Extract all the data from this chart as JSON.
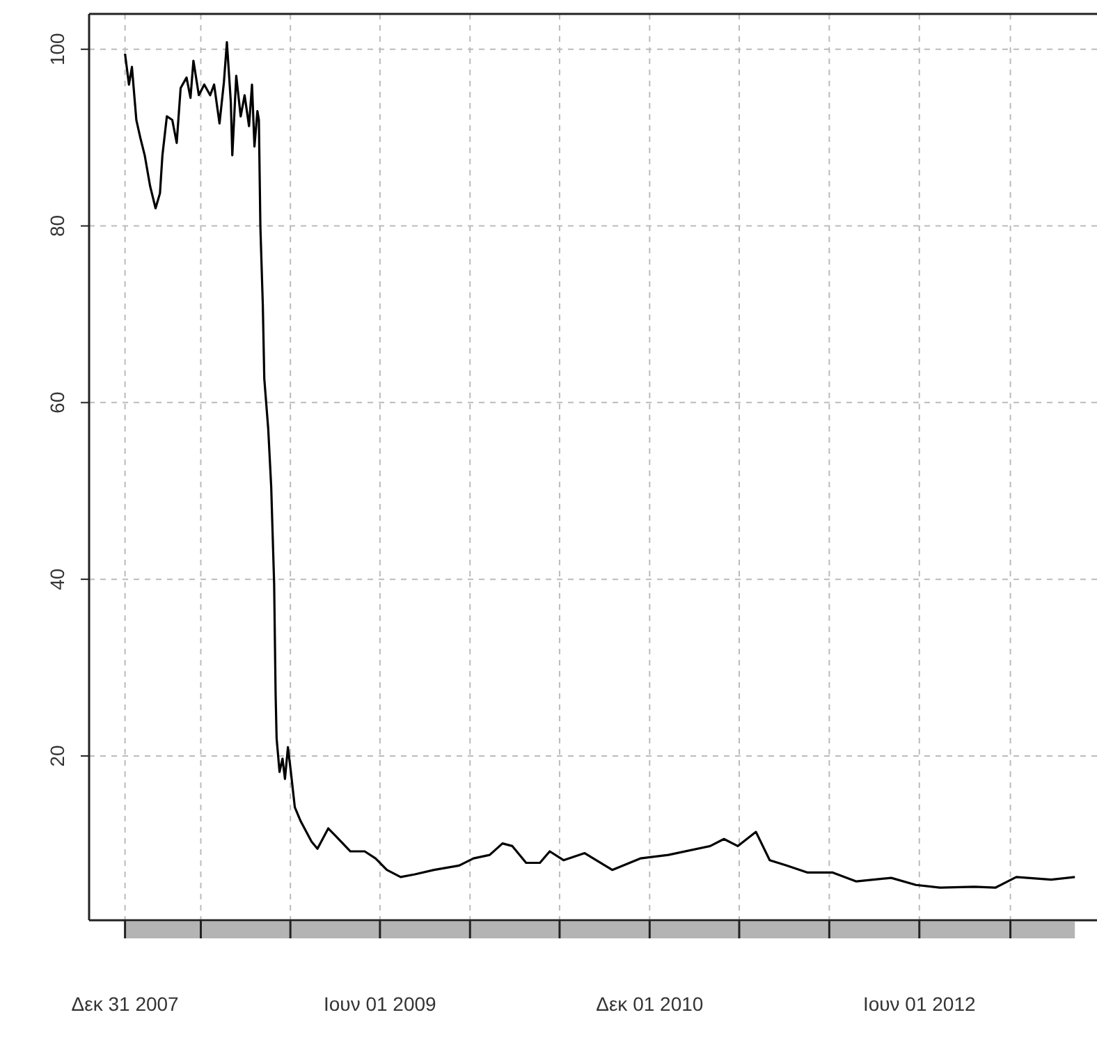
{
  "chart_data": {
    "type": "line",
    "x": [
      "2007-12-31",
      "2008-01-08",
      "2008-01-14",
      "2008-01-23",
      "2008-01-31",
      "2008-02-09",
      "2008-02-20",
      "2008-03-02",
      "2008-03-11",
      "2008-03-16",
      "2008-03-25",
      "2008-04-05",
      "2008-04-14",
      "2008-04-22",
      "2008-05-04",
      "2008-05-12",
      "2008-05-18",
      "2008-05-29",
      "2008-06-09",
      "2008-06-21",
      "2008-06-29",
      "2008-07-10",
      "2008-07-19",
      "2008-07-25",
      "2008-08-02",
      "2008-08-05",
      "2008-08-13",
      "2008-08-22",
      "2008-08-30",
      "2008-09-08",
      "2008-09-14",
      "2008-09-19",
      "2008-09-25",
      "2008-09-28",
      "2008-10-01",
      "2008-10-06",
      "2008-10-09",
      "2008-10-17",
      "2008-10-23",
      "2008-10-29",
      "2008-11-01",
      "2008-11-03",
      "2008-11-09",
      "2008-11-15",
      "2008-11-20",
      "2008-11-26",
      "2008-12-02",
      "2008-12-10",
      "2008-12-22",
      "2009-01-13",
      "2009-01-25",
      "2009-02-16",
      "2009-03-02",
      "2009-04-02",
      "2009-05-01",
      "2009-05-23",
      "2009-06-15",
      "2009-07-13",
      "2009-08-11",
      "2009-09-19",
      "2009-11-09",
      "2009-12-08",
      "2010-01-10",
      "2010-02-05",
      "2010-02-25",
      "2010-03-25",
      "2010-04-22",
      "2010-05-12",
      "2010-06-09",
      "2010-07-22",
      "2010-09-16",
      "2010-11-12",
      "2011-01-08",
      "2011-04-03",
      "2011-05-01",
      "2011-05-29",
      "2011-07-05",
      "2011-08-02",
      "2011-09-05",
      "2011-10-18",
      "2011-12-08",
      "2012-01-25",
      "2012-04-05",
      "2012-05-25",
      "2012-07-13",
      "2012-09-21",
      "2012-11-03",
      "2012-12-15",
      "2013-02-24",
      "2013-04-13"
    ],
    "series": [
      {
        "color": "#000000",
        "values": [
          99.5,
          96,
          98,
          92,
          90,
          88,
          84.5,
          82,
          83.7,
          88,
          92.4,
          92,
          89.4,
          95.6,
          96.8,
          94.5,
          98.7,
          94.8,
          96,
          94.8,
          96,
          91.6,
          96.3,
          100.8,
          94,
          88,
          97,
          92.4,
          94.8,
          91.3,
          96,
          89,
          93,
          92,
          80,
          71,
          62.7,
          57,
          50.5,
          39.5,
          27,
          22,
          18.2,
          19.7,
          17.4,
          21,
          18.2,
          14.2,
          12.6,
          10.3,
          9.5,
          11.8,
          11,
          9.2,
          9.2,
          8.4,
          7.1,
          6.3,
          6.6,
          7.1,
          7.6,
          8.4,
          8.8,
          10.1,
          9.8,
          7.9,
          7.9,
          9.2,
          8.2,
          9,
          7.1,
          8.4,
          8.8,
          9.8,
          10.6,
          9.8,
          11.4,
          8.2,
          7.6,
          6.8,
          6.8,
          5.8,
          6.2,
          5.4,
          5.1,
          5.2,
          5.1,
          6.3,
          6,
          6.3
        ]
      }
    ],
    "xlim": [
      "2007-10-19",
      "2013-05-28"
    ],
    "xticks": [
      {
        "value": "2007-12-31",
        "label": "Δεκ 31 2007"
      },
      {
        "value": "2008-06-02",
        "label": null
      },
      {
        "value": "2008-12-01",
        "label": null
      },
      {
        "value": "2009-06-01",
        "label": "Ιουν 01 2009"
      },
      {
        "value": "2009-12-01",
        "label": null
      },
      {
        "value": "2010-06-01",
        "label": null
      },
      {
        "value": "2010-12-01",
        "label": "Δεκ 01 2010"
      },
      {
        "value": "2011-06-01",
        "label": null
      },
      {
        "value": "2011-12-01",
        "label": null
      },
      {
        "value": "2012-06-01",
        "label": "Ιουν 01 2012"
      },
      {
        "value": "2012-12-03",
        "label": null
      }
    ],
    "ylim": [
      1.4,
      104
    ],
    "yticks": [
      20,
      40,
      60,
      80,
      100
    ],
    "grid": true,
    "line_style": "solid"
  }
}
